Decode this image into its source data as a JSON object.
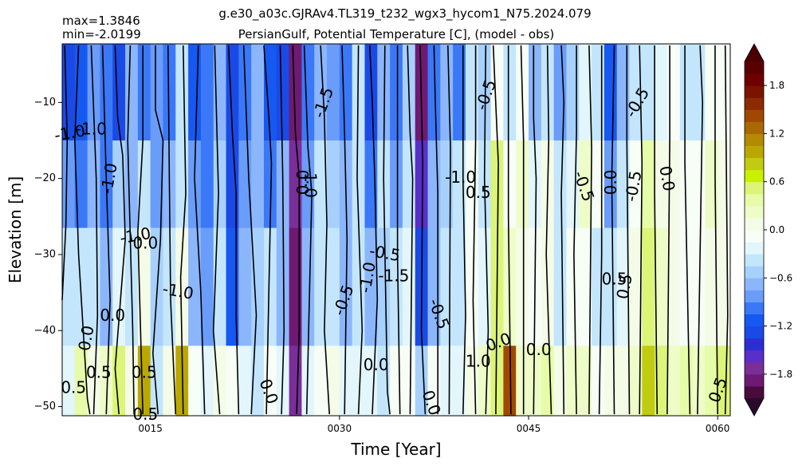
{
  "chart_data": {
    "type": "heatmap",
    "title": "g.e30_a03c.GJRAv4.TL319_t232_wgx3_hycom1_N75.2024.079",
    "subtitle": "PersianGulf, Potential Temperature [C], (model - obs)",
    "stats": {
      "max_label": "max=1.3846",
      "min_label": "min=-2.0199"
    },
    "xlabel": "Time [Year]",
    "ylabel": "Elevation [m]",
    "xlim": [
      8,
      61
    ],
    "ylim": [
      -51.2,
      -2.3
    ],
    "x_ticks": [
      15,
      30,
      45,
      60
    ],
    "x_tick_labels": [
      "0015",
      "0030",
      "0045",
      "0060"
    ],
    "y_ticks": [
      -10,
      -20,
      -30,
      -40,
      -50
    ],
    "y_tick_labels": [
      "−10",
      "−20",
      "−30",
      "−40",
      "−50"
    ],
    "layer_edges": [
      -2.3,
      -15,
      -26.5,
      -42,
      -51.2
    ],
    "time_start": 8,
    "values": [
      [
        -1.25,
        -1.15,
        -0.85,
        -1.05,
        -1.35,
        -0.75,
        -1.05,
        -0.85,
        -0.95,
        -0.45,
        -1.15,
        -1.05,
        -0.65,
        -1.35,
        -1.05,
        -0.75,
        -1.15,
        -1.25,
        -1.95,
        -1.05,
        -0.65,
        -0.85,
        -1.05,
        -0.45,
        -1.35,
        -0.65,
        -1.05,
        -0.55,
        -1.85,
        -1.05,
        -0.75,
        -1.05,
        -0.35,
        -0.55,
        -0.15,
        -0.45,
        -0.05,
        -0.75,
        -0.35,
        -0.85,
        -0.55,
        -0.25,
        -0.35,
        -1.15,
        -0.65,
        -0.45,
        -0.35,
        -0.25,
        -0.15,
        -0.45,
        -0.35,
        -0.05,
        -0.05
      ],
      [
        -0.85,
        -0.95,
        -0.75,
        -0.95,
        -0.55,
        -0.65,
        -0.35,
        -0.85,
        -0.75,
        -0.35,
        -0.85,
        -0.95,
        -0.55,
        -1.25,
        -0.85,
        -0.65,
        -0.95,
        -0.75,
        -1.75,
        -0.85,
        -0.45,
        -0.55,
        -0.75,
        -0.35,
        -0.95,
        -0.45,
        -0.85,
        -0.35,
        -1.55,
        -0.75,
        -0.55,
        -0.45,
        -0.15,
        -0.35,
        0.55,
        -0.15,
        0.15,
        -0.25,
        0.05,
        -0.45,
        -0.25,
        0.15,
        -0.15,
        -0.85,
        -0.35,
        -0.05,
        0.35,
        0.05,
        0.05,
        -0.15,
        -0.05,
        0.15,
        0.05
      ],
      [
        -0.45,
        -0.35,
        -0.35,
        -0.65,
        -0.25,
        -0.35,
        0.05,
        -0.55,
        -0.35,
        0.05,
        -0.65,
        -0.85,
        -0.45,
        -1.15,
        -0.75,
        -0.55,
        -0.45,
        -0.65,
        -1.85,
        -0.65,
        -0.35,
        -0.45,
        -0.65,
        -0.35,
        -0.65,
        -0.55,
        -0.45,
        -0.25,
        -1.25,
        -0.65,
        -0.45,
        -0.35,
        -0.15,
        -0.25,
        0.55,
        0.15,
        0.05,
        -0.05,
        0.05,
        -0.35,
        -0.15,
        -0.05,
        -0.35,
        -0.35,
        -0.25,
        0.05,
        0.45,
        0.15,
        0.05,
        -0.05,
        -0.05,
        0.05,
        0.05
      ],
      [
        -0.25,
        0.35,
        0.05,
        0.15,
        0.45,
        0.05,
        0.95,
        -0.35,
        0.05,
        0.95,
        -0.05,
        -0.25,
        0.05,
        -0.15,
        -0.25,
        -0.35,
        -0.05,
        -0.25,
        -1.75,
        -0.25,
        -0.05,
        0.05,
        -0.25,
        -0.25,
        -0.25,
        -0.35,
        -0.05,
        -0.05,
        -0.55,
        -0.15,
        -0.25,
        -0.25,
        0.05,
        0.15,
        0.45,
        1.45,
        0.25,
        0.15,
        0.35,
        0.05,
        0.15,
        0.25,
        -0.15,
        0.05,
        0.05,
        0.25,
        0.75,
        0.55,
        0.15,
        0.35,
        0.25,
        0.35,
        0.45
      ]
    ],
    "colorbar": {
      "levels": [
        -2.1,
        -1.95,
        -1.8,
        -1.65,
        -1.5,
        -1.35,
        -1.2,
        -1.05,
        -0.9,
        -0.75,
        -0.6,
        -0.45,
        -0.3,
        -0.15,
        0.0,
        0.15,
        0.3,
        0.45,
        0.6,
        0.75,
        0.9,
        1.05,
        1.2,
        1.35,
        1.5,
        1.65,
        1.8,
        1.95,
        2.1
      ],
      "colors": [
        "#4a0a3c",
        "#6e1a72",
        "#7a2e98",
        "#5a2ec8",
        "#2c2ed4",
        "#1a4ae6",
        "#1658f2",
        "#3a78f8",
        "#6a9cfa",
        "#8cb6fc",
        "#a8d0fc",
        "#c4e6fc",
        "#e2f6fc",
        "#f6fef6",
        "#f4fce8",
        "#eefcc8",
        "#e6fca8",
        "#dcf478",
        "#c8f000",
        "#c0cc10",
        "#baa800",
        "#b48a00",
        "#aa6800",
        "#a04800",
        "#8e2a00",
        "#7a1400",
        "#6e0000",
        "#5a0000"
      ],
      "under_color": "#2a0a2a",
      "over_color": "#4a0000",
      "ticks": [
        -1.8,
        -1.2,
        -0.6,
        0.0,
        0.6,
        1.2,
        1.8
      ],
      "tick_labels": [
        "−1.8",
        "−1.2",
        "−0.6",
        "0.0",
        "0.6",
        "1.2",
        "1.8"
      ]
    },
    "contour_lines": [
      [
        [
          8.2,
          -2.5
        ],
        [
          8.4,
          -15
        ],
        [
          8.3,
          -26
        ],
        [
          8.0,
          -36
        ]
      ],
      [
        [
          9.3,
          -2.5
        ],
        [
          9.0,
          -15
        ],
        [
          9.3,
          -30
        ],
        [
          10.0,
          -49
        ],
        [
          10.2,
          -51
        ]
      ],
      [
        [
          10.3,
          -2.5
        ],
        [
          10.7,
          -20
        ],
        [
          10.8,
          -38
        ],
        [
          10.5,
          -51
        ]
      ],
      [
        [
          11.2,
          -2.5
        ],
        [
          11.5,
          -20
        ],
        [
          11.8,
          -36
        ],
        [
          11.5,
          -51
        ]
      ],
      [
        [
          12.2,
          -2.5
        ],
        [
          12.4,
          -12
        ],
        [
          12.8,
          -17
        ],
        [
          13.0,
          -28
        ],
        [
          12.2,
          -45
        ],
        [
          12.5,
          -51
        ]
      ],
      [
        [
          13.4,
          -2.5
        ],
        [
          13.2,
          -15
        ],
        [
          13.6,
          -40
        ],
        [
          13.7,
          -51
        ]
      ],
      [
        [
          14.4,
          -2.5
        ],
        [
          14.4,
          -15
        ],
        [
          14.0,
          -27
        ],
        [
          14.4,
          -51
        ]
      ],
      [
        [
          15.4,
          -2.5
        ],
        [
          15.4,
          -11
        ],
        [
          16.0,
          -15
        ],
        [
          15.8,
          -28
        ],
        [
          15.2,
          -43
        ],
        [
          15.6,
          -51
        ]
      ],
      [
        [
          16.4,
          -2.5
        ],
        [
          16.5,
          -20
        ],
        [
          16.6,
          -36
        ],
        [
          17.0,
          -51
        ]
      ],
      [
        [
          17.6,
          -2.5
        ],
        [
          17.8,
          -22
        ],
        [
          17.4,
          -33
        ],
        [
          17.6,
          -51
        ]
      ],
      [
        [
          18.8,
          -2.5
        ],
        [
          18.5,
          -20
        ],
        [
          19.0,
          -35
        ],
        [
          19.3,
          -51
        ]
      ],
      [
        [
          20.1,
          -2.5
        ],
        [
          20.4,
          -22
        ],
        [
          20.0,
          -40
        ],
        [
          20.5,
          -51
        ]
      ],
      [
        [
          21.2,
          -2.5
        ],
        [
          21.5,
          -14
        ],
        [
          21.8,
          -22
        ],
        [
          21.8,
          -38
        ],
        [
          22.0,
          -51
        ]
      ],
      [
        [
          22.4,
          -2.5
        ],
        [
          22.8,
          -20
        ],
        [
          23.4,
          -38
        ],
        [
          23.0,
          -51
        ]
      ],
      [
        [
          24.0,
          -2.5
        ],
        [
          24.4,
          -12
        ],
        [
          24.6,
          -18
        ],
        [
          24.2,
          -51
        ]
      ],
      [
        [
          25.3,
          -2.5
        ],
        [
          25.5,
          -20
        ],
        [
          25.6,
          -40
        ],
        [
          25.4,
          -51
        ]
      ],
      [
        [
          26.3,
          -2.5
        ],
        [
          26.5,
          -14
        ],
        [
          26.8,
          -20
        ],
        [
          26.8,
          -40
        ],
        [
          26.6,
          -51
        ]
      ],
      [
        [
          27.2,
          -2.5
        ],
        [
          27.5,
          -16
        ],
        [
          27.8,
          -22
        ],
        [
          27.4,
          -51
        ]
      ],
      [
        [
          28.5,
          -2.5
        ],
        [
          28.8,
          -12
        ],
        [
          29.0,
          -26
        ],
        [
          28.8,
          -40
        ],
        [
          29.2,
          -51
        ]
      ],
      [
        [
          30.2,
          -2.5
        ],
        [
          30.4,
          -14
        ],
        [
          30.6,
          -28
        ],
        [
          30.4,
          -51
        ]
      ],
      [
        [
          31.5,
          -2.5
        ],
        [
          31.4,
          -20
        ],
        [
          31.8,
          -40
        ],
        [
          31.5,
          -51
        ]
      ],
      [
        [
          32.4,
          -2.5
        ],
        [
          32.6,
          -10
        ],
        [
          32.8,
          -20
        ],
        [
          33.0,
          -36
        ],
        [
          32.6,
          -51
        ]
      ],
      [
        [
          33.6,
          -2.5
        ],
        [
          33.5,
          -20
        ],
        [
          33.8,
          -48
        ],
        [
          34.0,
          -51
        ]
      ],
      [
        [
          34.6,
          -2.5
        ],
        [
          34.6,
          -30
        ],
        [
          34.8,
          -51
        ]
      ],
      [
        [
          35.4,
          -2.5
        ],
        [
          35.6,
          -14
        ],
        [
          35.8,
          -20
        ],
        [
          35.6,
          -51
        ]
      ],
      [
        [
          36.4,
          -2.5
        ],
        [
          36.6,
          -18
        ],
        [
          36.5,
          -40
        ],
        [
          36.8,
          -51
        ]
      ],
      [
        [
          37.5,
          -2.5
        ],
        [
          37.6,
          -10
        ],
        [
          37.8,
          -22
        ],
        [
          37.8,
          -51
        ]
      ],
      [
        [
          38.6,
          -2.5
        ],
        [
          38.8,
          -16
        ],
        [
          38.7,
          -51
        ]
      ],
      [
        [
          39.8,
          -2.5
        ],
        [
          39.8,
          -20
        ],
        [
          40.0,
          -38
        ],
        [
          39.8,
          -51
        ]
      ],
      [
        [
          40.8,
          -2.5
        ],
        [
          40.8,
          -15
        ],
        [
          40.6,
          -36
        ],
        [
          40.8,
          -51
        ]
      ],
      [
        [
          41.6,
          -2.5
        ],
        [
          41.5,
          -20
        ],
        [
          41.8,
          -40
        ],
        [
          41.6,
          -51
        ]
      ],
      [
        [
          42.2,
          -2.5
        ],
        [
          42.6,
          -18
        ],
        [
          42.4,
          -51
        ]
      ],
      [
        [
          43.4,
          -2.5
        ],
        [
          43.4,
          -25
        ],
        [
          43.6,
          -51
        ]
      ],
      [
        [
          44.4,
          -2.5
        ],
        [
          44.6,
          -15
        ],
        [
          44.6,
          -51
        ]
      ],
      [
        [
          45.4,
          -2.5
        ],
        [
          45.4,
          -12
        ],
        [
          45.6,
          -20
        ],
        [
          45.4,
          -51
        ]
      ],
      [
        [
          46.5,
          -2.5
        ],
        [
          46.6,
          -15
        ],
        [
          46.4,
          -30
        ],
        [
          46.8,
          -51
        ]
      ],
      [
        [
          47.6,
          -2.5
        ],
        [
          47.8,
          -10
        ],
        [
          47.6,
          -22
        ],
        [
          47.8,
          -51
        ]
      ],
      [
        [
          48.8,
          -2.5
        ],
        [
          48.8,
          -14
        ],
        [
          48.6,
          -30
        ],
        [
          48.8,
          -51
        ]
      ],
      [
        [
          49.8,
          -2.5
        ],
        [
          50.0,
          -16
        ],
        [
          49.8,
          -51
        ]
      ],
      [
        [
          50.8,
          -2.5
        ],
        [
          50.8,
          -30
        ],
        [
          50.6,
          -51
        ]
      ],
      [
        [
          51.8,
          -2.5
        ],
        [
          51.6,
          -20
        ],
        [
          51.8,
          -51
        ]
      ],
      [
        [
          52.8,
          -2.5
        ],
        [
          52.8,
          -15
        ],
        [
          53.0,
          -51
        ]
      ],
      [
        [
          53.8,
          -2.5
        ],
        [
          54.0,
          -18
        ],
        [
          53.8,
          -51
        ]
      ],
      [
        [
          55.0,
          -2.5
        ],
        [
          55.0,
          -22
        ],
        [
          55.2,
          -51
        ]
      ],
      [
        [
          56.2,
          -2.5
        ],
        [
          56.2,
          -15
        ],
        [
          56.0,
          -51
        ]
      ],
      [
        [
          57.4,
          -2.5
        ],
        [
          57.4,
          -18
        ],
        [
          57.8,
          -51
        ]
      ],
      [
        [
          58.6,
          -2.5
        ],
        [
          58.8,
          -10
        ],
        [
          58.4,
          -51
        ]
      ],
      [
        [
          59.8,
          -2.5
        ],
        [
          59.8,
          -20
        ],
        [
          60.0,
          -51
        ]
      ],
      [
        [
          60.6,
          -2.5
        ],
        [
          60.8,
          -38
        ],
        [
          60.6,
          -51
        ]
      ]
    ],
    "contour_labels": [
      {
        "x": 8.6,
        "y": -14.0,
        "text": "-1.0",
        "rot": -10
      },
      {
        "x": 10.3,
        "y": -13.5,
        "text": "-1.0",
        "rot": 0
      },
      {
        "x": 11.7,
        "y": -20.0,
        "text": "-1.0",
        "rot": -80
      },
      {
        "x": 13.8,
        "y": -27.5,
        "text": "-1.0",
        "rot": -10
      },
      {
        "x": 14.6,
        "y": -28.5,
        "text": "0.0",
        "rot": 0
      },
      {
        "x": 17.2,
        "y": -34.8,
        "text": "-1.0",
        "rot": 10
      },
      {
        "x": 12.0,
        "y": -38.0,
        "text": "0.0",
        "rot": 0
      },
      {
        "x": 9.9,
        "y": -41.0,
        "text": "0.0",
        "rot": -80
      },
      {
        "x": 10.9,
        "y": -45.5,
        "text": "0.5",
        "rot": 0
      },
      {
        "x": 8.9,
        "y": -47.5,
        "text": "0.5",
        "rot": 0
      },
      {
        "x": 14.5,
        "y": -45.5,
        "text": "0.5",
        "rot": 0
      },
      {
        "x": 14.6,
        "y": -51.0,
        "text": "0.5",
        "rot": 0
      },
      {
        "x": 24.4,
        "y": -48.0,
        "text": "0.0",
        "rot": 70
      },
      {
        "x": 27.1,
        "y": -20.5,
        "text": "0.0",
        "rot": -90
      },
      {
        "x": 27.7,
        "y": -20.5,
        "text": "-1.0",
        "rot": 90
      },
      {
        "x": 28.7,
        "y": -10.0,
        "text": "-1.5",
        "rot": -70
      },
      {
        "x": 33.6,
        "y": -29.8,
        "text": "-0.5",
        "rot": 10
      },
      {
        "x": 34.3,
        "y": -32.8,
        "text": "-1.5",
        "rot": 0
      },
      {
        "x": 32.2,
        "y": -33.0,
        "text": "-1.0",
        "rot": -80
      },
      {
        "x": 30.3,
        "y": -36.0,
        "text": "-0.5",
        "rot": -70
      },
      {
        "x": 32.9,
        "y": -44.5,
        "text": "0.0",
        "rot": 0
      },
      {
        "x": 37.9,
        "y": -37.8,
        "text": "-0.5",
        "rot": 70
      },
      {
        "x": 37.3,
        "y": -49.5,
        "text": "0.0",
        "rot": 70
      },
      {
        "x": 39.6,
        "y": -19.8,
        "text": "-1.0",
        "rot": 0
      },
      {
        "x": 41.0,
        "y": -21.8,
        "text": "0.5",
        "rot": 0
      },
      {
        "x": 41.6,
        "y": -9.0,
        "text": "-0.5",
        "rot": -70
      },
      {
        "x": 41.0,
        "y": -44.0,
        "text": "1.0",
        "rot": 0
      },
      {
        "x": 42.6,
        "y": -41.5,
        "text": "0.0",
        "rot": -20
      },
      {
        "x": 45.8,
        "y": -42.5,
        "text": "0.0",
        "rot": 0
      },
      {
        "x": 49.4,
        "y": -21.0,
        "text": "-0.5",
        "rot": 70
      },
      {
        "x": 51.5,
        "y": -20.5,
        "text": "0.0",
        "rot": -90
      },
      {
        "x": 51.8,
        "y": -33.2,
        "text": "0.5",
        "rot": 0
      },
      {
        "x": 52.6,
        "y": -34.2,
        "text": "0.5",
        "rot": -80
      },
      {
        "x": 53.6,
        "y": -10.0,
        "text": "-0.5",
        "rot": -60
      },
      {
        "x": 53.3,
        "y": -21.0,
        "text": "-0.5",
        "rot": -80
      },
      {
        "x": 56.0,
        "y": -20.0,
        "text": "0.0",
        "rot": 80
      },
      {
        "x": 60.0,
        "y": -47.8,
        "text": "0.5",
        "rot": -70
      }
    ]
  }
}
